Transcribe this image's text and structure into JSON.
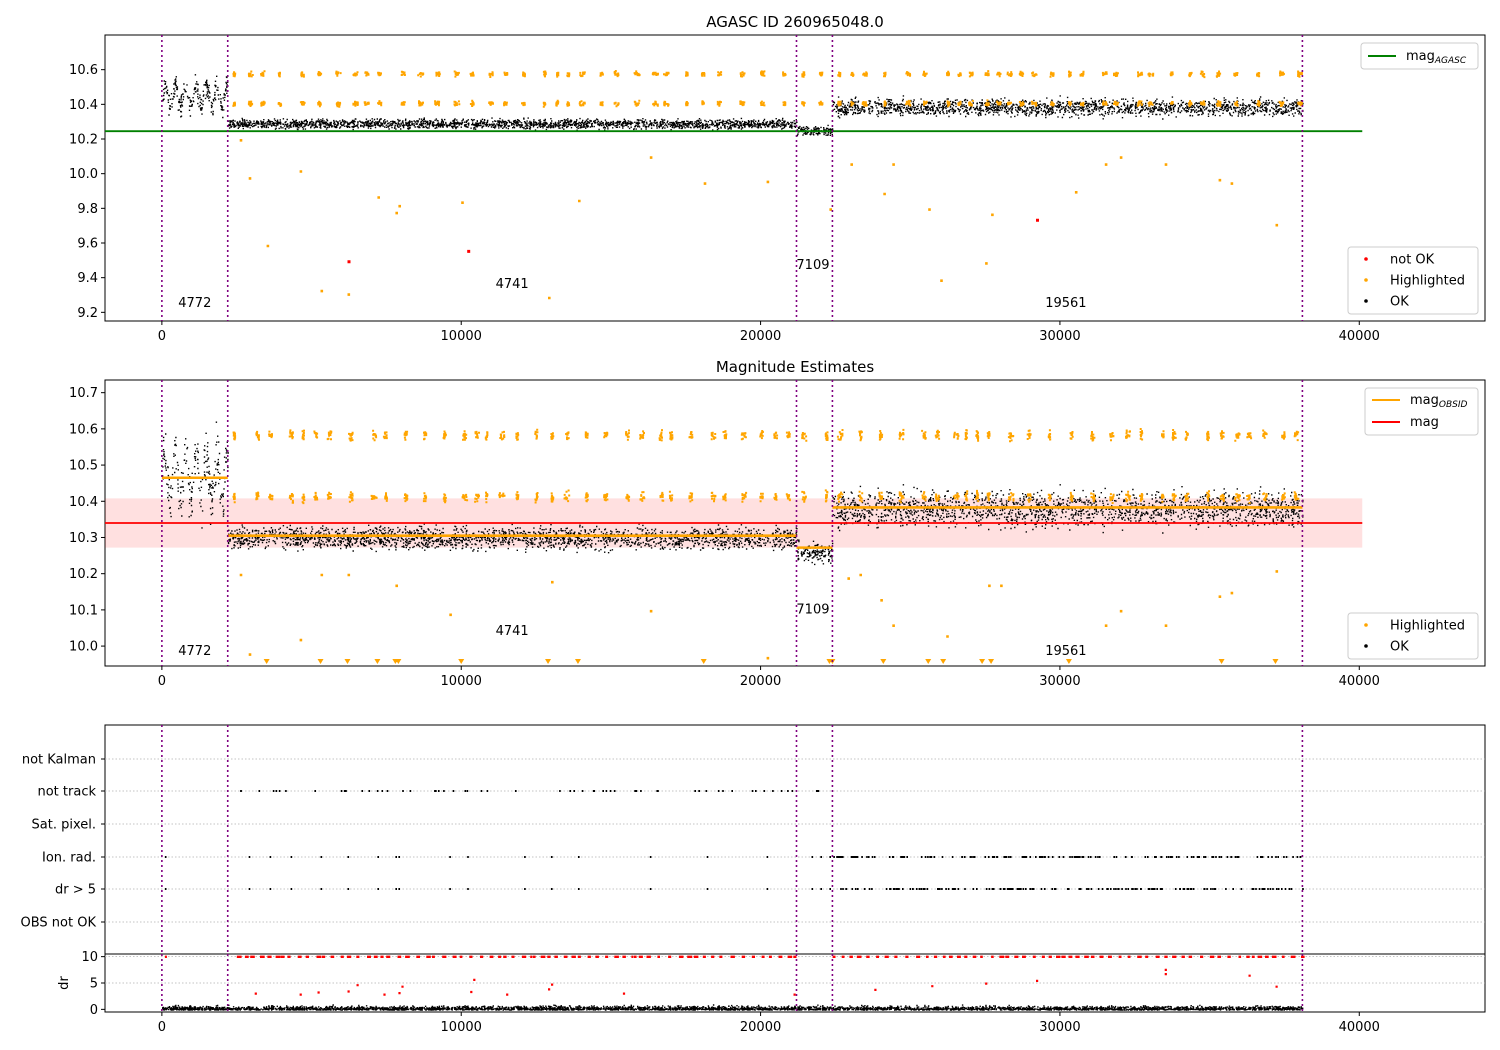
{
  "chart_data": [
    {
      "type": "scatter",
      "title": "AGASC ID 260965048.0",
      "xlim": [
        -1900,
        44200
      ],
      "ylim": [
        9.15,
        10.8
      ],
      "xticks": [
        0,
        10000,
        20000,
        30000,
        40000
      ],
      "yticks": [
        9.2,
        9.4,
        9.6,
        9.8,
        10.0,
        10.2,
        10.4,
        10.6
      ],
      "obs_boundaries": [
        0,
        2200,
        21200,
        22400,
        38100
      ],
      "segment_labels": [
        {
          "text": "4772",
          "x": 1100,
          "y": 9.23
        },
        {
          "text": "4741",
          "x": 11700,
          "y": 9.34
        },
        {
          "text": "7109",
          "x": 21750,
          "y": 9.45
        },
        {
          "text": "19561",
          "x": 30200,
          "y": 9.23
        }
      ],
      "reference_line": {
        "name": "mag_AGASC",
        "y": 10.245,
        "x": [
          -1900,
          40100
        ],
        "color": "#008000"
      },
      "legend_lines": [
        {
          "label": "mag",
          "sub": "AGASC",
          "color": "#008000"
        }
      ],
      "legend_points": [
        {
          "label": "not OK",
          "color": "#ff0000"
        },
        {
          "label": "Highlighted",
          "color": "#ffa500"
        },
        {
          "label": "OK",
          "color": "#000000"
        }
      ],
      "segments_ok": [
        {
          "x0": 0,
          "x1": 2200,
          "center": 10.45,
          "spread": 0.09,
          "osc": 0.06
        },
        {
          "x0": 2200,
          "x1": 21200,
          "center": 10.29,
          "spread": 0.04,
          "osc": 0.0
        },
        {
          "x0": 21200,
          "x1": 22400,
          "center": 10.25,
          "spread": 0.04,
          "osc": 0.0
        },
        {
          "x0": 22400,
          "x1": 38100,
          "center": 10.385,
          "spread": 0.07,
          "osc": 0.0
        }
      ],
      "highlighted_bands": [
        10.58,
        10.41
      ],
      "outliers_highlighted": [
        [
          2600,
          10.2
        ],
        [
          2900,
          9.98
        ],
        [
          3500,
          9.59
        ],
        [
          4600,
          10.02
        ],
        [
          5300,
          9.33
        ],
        [
          6200,
          9.31
        ],
        [
          7200,
          9.87
        ],
        [
          7800,
          9.78
        ],
        [
          7900,
          9.82
        ],
        [
          10000,
          9.84
        ],
        [
          12900,
          9.29
        ],
        [
          13900,
          9.85
        ],
        [
          16300,
          10.1
        ],
        [
          18100,
          9.95
        ],
        [
          20200,
          9.96
        ],
        [
          22300,
          9.8
        ],
        [
          23000,
          10.06
        ],
        [
          24100,
          9.89
        ],
        [
          24400,
          10.06
        ],
        [
          25600,
          9.8
        ],
        [
          26000,
          9.39
        ],
        [
          27500,
          9.49
        ],
        [
          27700,
          9.77
        ],
        [
          30500,
          9.9
        ],
        [
          31500,
          10.06
        ],
        [
          32000,
          10.1
        ],
        [
          33500,
          10.06
        ],
        [
          35300,
          9.97
        ],
        [
          35700,
          9.95
        ],
        [
          37200,
          9.71
        ]
      ],
      "outliers_not_ok": [
        [
          6200,
          9.5
        ],
        [
          10200,
          9.56
        ],
        [
          29200,
          9.74
        ]
      ]
    },
    {
      "type": "scatter",
      "title": "Magnitude Estimates",
      "xlim": [
        -1900,
        44200
      ],
      "ylim": [
        9.945,
        10.735
      ],
      "xticks": [
        0,
        10000,
        20000,
        30000,
        40000
      ],
      "yticks": [
        10.0,
        10.1,
        10.2,
        10.3,
        10.4,
        10.5,
        10.6,
        10.7
      ],
      "obs_boundaries": [
        0,
        2200,
        21200,
        22400,
        38100
      ],
      "segment_labels": [
        {
          "text": "4772",
          "x": 1100,
          "y": 9.975
        },
        {
          "text": "4741",
          "x": 11700,
          "y": 10.03
        },
        {
          "text": "7109",
          "x": 21750,
          "y": 10.09
        },
        {
          "text": "19561",
          "x": 30200,
          "y": 9.975
        }
      ],
      "mag_line": {
        "name": "mag",
        "y": 10.34,
        "band": [
          10.272,
          10.408
        ],
        "x": [
          -1900,
          40100
        ],
        "color": "#ff0000"
      },
      "obsid_steps": [
        {
          "x0": 0,
          "x1": 2200,
          "y": 10.465
        },
        {
          "x0": 2200,
          "x1": 21200,
          "y": 10.305
        },
        {
          "x0": 21200,
          "x1": 22400,
          "y": 10.272
        },
        {
          "x0": 22400,
          "x1": 38100,
          "y": 10.383
        }
      ],
      "legend_lines": [
        {
          "label": "mag",
          "sub": "OBSID",
          "color": "#ffa500"
        },
        {
          "label": "mag",
          "sub": "",
          "color": "#ff0000"
        }
      ],
      "legend_points": [
        {
          "label": "Highlighted",
          "color": "#ffa500"
        },
        {
          "label": "OK",
          "color": "#000000"
        }
      ],
      "segments_ok": [
        {
          "x0": 0,
          "x1": 2200,
          "center": 10.47,
          "spread": 0.1,
          "osc": 0.07
        },
        {
          "x0": 2200,
          "x1": 21200,
          "center": 10.3,
          "spread": 0.045,
          "osc": 0.0
        },
        {
          "x0": 21200,
          "x1": 22400,
          "center": 10.26,
          "spread": 0.04,
          "osc": 0.0
        },
        {
          "x0": 22400,
          "x1": 38100,
          "center": 10.38,
          "spread": 0.07,
          "osc": 0.0
        }
      ],
      "highlighted_bands": [
        10.585,
        10.415
      ],
      "outliers_highlighted": [
        [
          2600,
          10.2
        ],
        [
          2900,
          9.98
        ],
        [
          4600,
          10.02
        ],
        [
          5300,
          10.2
        ],
        [
          6200,
          10.2
        ],
        [
          7800,
          10.17
        ],
        [
          9600,
          10.09
        ],
        [
          13000,
          10.18
        ],
        [
          16300,
          10.1
        ],
        [
          20200,
          9.97
        ],
        [
          22900,
          10.19
        ],
        [
          23300,
          10.2
        ],
        [
          24000,
          10.13
        ],
        [
          24400,
          10.06
        ],
        [
          26200,
          10.03
        ],
        [
          27600,
          10.17
        ],
        [
          28000,
          10.17
        ],
        [
          31500,
          10.06
        ],
        [
          32000,
          10.1
        ],
        [
          33500,
          10.06
        ],
        [
          35300,
          10.14
        ],
        [
          35700,
          10.15
        ],
        [
          37200,
          10.21
        ]
      ],
      "floor_markers": [
        3500,
        5300,
        6200,
        7200,
        7800,
        7900,
        10000,
        12900,
        13900,
        18100,
        22300,
        22400,
        24100,
        25600,
        26100,
        27400,
        27700,
        30300,
        35400,
        37200
      ]
    },
    {
      "type": "table",
      "flag_rows": [
        "not Kalman",
        "not track",
        "Sat. pixel.",
        "Ion. rad.",
        "dr > 5",
        "OBS not OK"
      ],
      "xlim": [
        -1900,
        44200
      ],
      "obs_boundaries": [
        0,
        2200,
        21200,
        22400,
        38100
      ],
      "flag_points": {
        "not track": {
          "x0": 2500,
          "x1": 22100,
          "n": 60
        },
        "Ion. rad.": {
          "sparse": [
            100,
            2900,
            3600,
            4300,
            5300,
            6200,
            7200,
            7800,
            7900,
            9600,
            10200,
            12100,
            13000,
            13900,
            16300,
            18200,
            20200,
            21700,
            22000,
            22300
          ],
          "x0": 22400,
          "x1": 38100,
          "n": 150
        },
        "dr > 5": {
          "sparse": [
            100,
            2900,
            3600,
            4300,
            5300,
            6200,
            7200,
            7800,
            7900,
            9600,
            10200,
            12100,
            13000,
            13900,
            16300,
            18200,
            20200,
            21700,
            22000,
            22300
          ],
          "x0": 22400,
          "x1": 38100,
          "n": 150
        }
      }
    },
    {
      "type": "scatter",
      "ylabel": "dr",
      "xlim": [
        -1900,
        44200
      ],
      "ylim": [
        -0.5,
        10.5
      ],
      "xticks": [
        0,
        10000,
        20000,
        30000,
        40000
      ],
      "yticks": [
        0,
        5,
        10
      ],
      "obs_boundaries": [
        0,
        2200,
        21200,
        22400,
        38100
      ],
      "ok_range": [
        0,
        1.2
      ],
      "cap_value": 10,
      "mid_outliers": [
        [
          3100,
          3.2
        ],
        [
          4600,
          3.0
        ],
        [
          5200,
          3.4
        ],
        [
          6200,
          3.6
        ],
        [
          6500,
          4.8
        ],
        [
          7400,
          3.0
        ],
        [
          7900,
          3.3
        ],
        [
          8000,
          4.5
        ],
        [
          10300,
          3.5
        ],
        [
          10400,
          5.8
        ],
        [
          11500,
          3.0
        ],
        [
          12900,
          4.0
        ],
        [
          13000,
          4.9
        ],
        [
          15400,
          3.2
        ],
        [
          21100,
          3.0
        ],
        [
          23800,
          3.9
        ],
        [
          25700,
          4.6
        ],
        [
          27500,
          5.1
        ],
        [
          29200,
          5.6
        ],
        [
          33500,
          6.9
        ],
        [
          33500,
          7.7
        ],
        [
          36300,
          6.6
        ],
        [
          37200,
          4.5
        ]
      ]
    }
  ]
}
